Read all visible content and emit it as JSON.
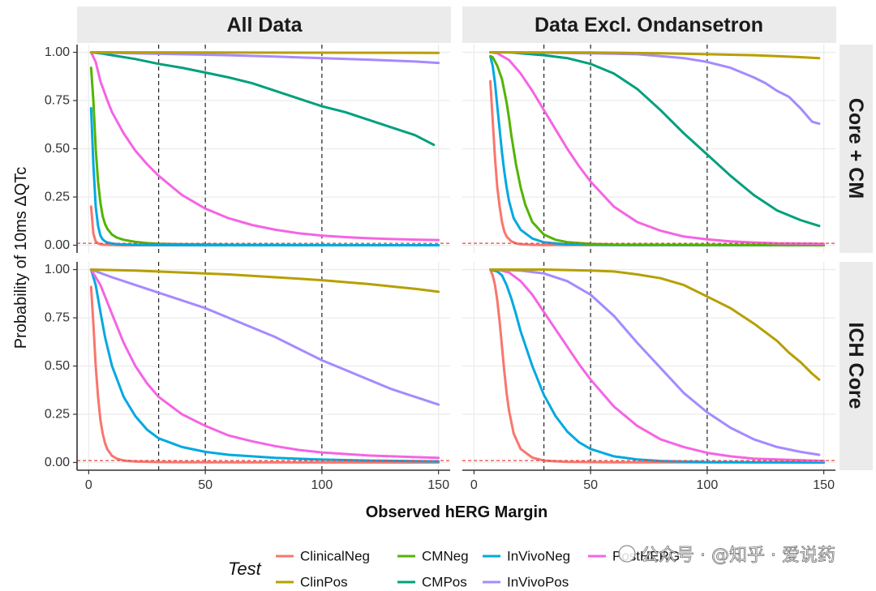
{
  "chart_data": {
    "type": "line",
    "xlabel": "Observed hERG Margin",
    "ylabel": "Probability of 10ms ΔQTc",
    "xlim": [
      -5,
      155
    ],
    "ylim": [
      -0.04,
      1.04
    ],
    "x_ticks": [
      0,
      50,
      100,
      150
    ],
    "x_tick_labels": [
      "0",
      "50",
      "100",
      "150"
    ],
    "y_ticks": [
      0,
      0.25,
      0.5,
      0.75,
      1
    ],
    "y_tick_labels": [
      "0.00",
      "0.25",
      "0.50",
      "0.75",
      "1.00"
    ],
    "vlines": [
      30,
      50,
      100
    ],
    "hline": 0.01,
    "col_facets": [
      "All Data",
      "Data Excl. Ondansetron"
    ],
    "row_facets": [
      "Core + CM",
      "ICH Core"
    ],
    "legend": {
      "title": "Test",
      "items": [
        {
          "key": "ClinicalNeg",
          "label": "ClinicalNeg",
          "color": "#F8766D"
        },
        {
          "key": "ClinPos",
          "label": "ClinPos",
          "color": "#B79F00"
        },
        {
          "key": "CMNeg",
          "label": "CMNeg",
          "color": "#53B400"
        },
        {
          "key": "CMPos",
          "label": "CMPos",
          "color": "#00A07C"
        },
        {
          "key": "InVivoNeg",
          "label": "InVivoNeg",
          "color": "#00A9E0"
        },
        {
          "key": "InVivoPos",
          "label": "InVivoPos",
          "color": "#A58AFF"
        },
        {
          "key": "PostHERG",
          "label": "PostHERG",
          "color": "#F564E3"
        }
      ]
    },
    "panels": [
      {
        "row": "Core + CM",
        "col": "All Data",
        "series": [
          {
            "name": "ClinicalNeg",
            "x": [
              1,
              2,
              3,
              4,
              5,
              6,
              8,
              10,
              15,
              30,
              150
            ],
            "y": [
              0.2,
              0.06,
              0.02,
              0.01,
              0.005,
              0.003,
              0.002,
              0.001,
              0,
              0,
              0
            ]
          },
          {
            "name": "CMNeg",
            "x": [
              1,
              2,
              3,
              4,
              5,
              6,
              7,
              8,
              10,
              12,
              15,
              20,
              25,
              30,
              40,
              60,
              150
            ],
            "y": [
              0.92,
              0.75,
              0.5,
              0.33,
              0.22,
              0.15,
              0.11,
              0.085,
              0.055,
              0.04,
              0.028,
              0.017,
              0.011,
              0.008,
              0.005,
              0.002,
              0
            ]
          },
          {
            "name": "InVivoNeg",
            "x": [
              1,
              2,
              3,
              4,
              5,
              6,
              7,
              8,
              10,
              12,
              15,
              20,
              30,
              50,
              150
            ],
            "y": [
              0.71,
              0.42,
              0.2,
              0.1,
              0.05,
              0.03,
              0.02,
              0.014,
              0.009,
              0.006,
              0.004,
              0.002,
              0.001,
              0,
              0
            ]
          },
          {
            "name": "PostHERG",
            "x": [
              1,
              3,
              5,
              8,
              10,
              15,
              20,
              25,
              30,
              40,
              50,
              60,
              70,
              80,
              90,
              100,
              110,
              120,
              130,
              140,
              150
            ],
            "y": [
              1,
              0.95,
              0.85,
              0.75,
              0.69,
              0.58,
              0.49,
              0.42,
              0.36,
              0.26,
              0.19,
              0.14,
              0.105,
              0.08,
              0.062,
              0.05,
              0.042,
              0.036,
              0.032,
              0.029,
              0.027
            ]
          },
          {
            "name": "CMPos",
            "x": [
              1,
              5,
              10,
              20,
              30,
              40,
              50,
              60,
              70,
              80,
              90,
              100,
              110,
              120,
              130,
              140,
              148
            ],
            "y": [
              1,
              0.995,
              0.985,
              0.965,
              0.94,
              0.92,
              0.895,
              0.87,
              0.84,
              0.8,
              0.76,
              0.72,
              0.69,
              0.65,
              0.61,
              0.57,
              0.52
            ]
          },
          {
            "name": "InVivoPos",
            "x": [
              1,
              20,
              40,
              60,
              80,
              100,
              120,
              140,
              150
            ],
            "y": [
              1,
              0.995,
              0.99,
              0.985,
              0.978,
              0.97,
              0.962,
              0.952,
              0.945
            ]
          },
          {
            "name": "ClinPos",
            "x": [
              1,
              50,
              100,
              150
            ],
            "y": [
              1,
              0.999,
              0.998,
              0.997
            ]
          }
        ]
      },
      {
        "row": "Core + CM",
        "col": "Data Excl. Ondansetron",
        "series": [
          {
            "name": "ClinicalNeg",
            "x": [
              7,
              8,
              9,
              10,
              11,
              12,
              13,
              14,
              16,
              18,
              20,
              25,
              30,
              150
            ],
            "y": [
              0.85,
              0.65,
              0.45,
              0.3,
              0.2,
              0.12,
              0.07,
              0.045,
              0.02,
              0.01,
              0.005,
              0.002,
              0.001,
              0
            ]
          },
          {
            "name": "InVivoNeg",
            "x": [
              7,
              8,
              9,
              10,
              11,
              12,
              13,
              14,
              15,
              17,
              20,
              25,
              30,
              40,
              60,
              150
            ],
            "y": [
              0.98,
              0.93,
              0.84,
              0.72,
              0.6,
              0.48,
              0.38,
              0.3,
              0.23,
              0.14,
              0.08,
              0.035,
              0.015,
              0.004,
              0.001,
              0
            ]
          },
          {
            "name": "CMNeg",
            "x": [
              7,
              8,
              10,
              12,
              14,
              15,
              16,
              18,
              20,
              22,
              25,
              30,
              35,
              40,
              50,
              60,
              150
            ],
            "y": [
              0.98,
              0.975,
              0.93,
              0.86,
              0.74,
              0.66,
              0.57,
              0.42,
              0.3,
              0.21,
              0.12,
              0.055,
              0.028,
              0.016,
              0.007,
              0.003,
              0
            ]
          },
          {
            "name": "PostHERG",
            "x": [
              7,
              10,
              15,
              20,
              25,
              30,
              35,
              40,
              45,
              50,
              60,
              70,
              80,
              90,
              100,
              110,
              120,
              130,
              150
            ],
            "y": [
              1,
              0.995,
              0.96,
              0.89,
              0.8,
              0.7,
              0.6,
              0.5,
              0.41,
              0.33,
              0.2,
              0.12,
              0.075,
              0.045,
              0.03,
              0.02,
              0.014,
              0.01,
              0.007
            ]
          },
          {
            "name": "CMPos",
            "x": [
              7,
              15,
              20,
              30,
              40,
              50,
              60,
              70,
              80,
              90,
              100,
              110,
              120,
              130,
              140,
              148
            ],
            "y": [
              1,
              1,
              0.995,
              0.985,
              0.97,
              0.94,
              0.89,
              0.81,
              0.7,
              0.58,
              0.47,
              0.36,
              0.26,
              0.18,
              0.13,
              0.1
            ]
          },
          {
            "name": "InVivoPos",
            "x": [
              7,
              30,
              50,
              70,
              80,
              90,
              100,
              110,
              120,
              125,
              130,
              135,
              140,
              145,
              148
            ],
            "y": [
              1,
              0.998,
              0.995,
              0.99,
              0.98,
              0.97,
              0.95,
              0.92,
              0.87,
              0.84,
              0.8,
              0.77,
              0.71,
              0.64,
              0.63
            ]
          },
          {
            "name": "ClinPos",
            "x": [
              7,
              50,
              80,
              100,
              120,
              130,
              140,
              148
            ],
            "y": [
              1,
              0.999,
              0.995,
              0.99,
              0.985,
              0.98,
              0.975,
              0.97
            ]
          }
        ]
      },
      {
        "row": "ICH Core",
        "col": "All Data",
        "series": [
          {
            "name": "ClinicalNeg",
            "x": [
              1,
              2,
              3,
              4,
              5,
              6,
              7,
              8,
              10,
              12,
              15,
              20,
              30,
              50,
              150
            ],
            "y": [
              0.91,
              0.72,
              0.5,
              0.34,
              0.22,
              0.15,
              0.1,
              0.068,
              0.035,
              0.02,
              0.01,
              0.005,
              0.002,
              0.001,
              0
            ]
          },
          {
            "name": "InVivoNeg",
            "x": [
              1,
              3,
              5,
              7,
              10,
              15,
              20,
              25,
              30,
              40,
              50,
              60,
              80,
              100,
              120,
              150
            ],
            "y": [
              1,
              0.92,
              0.78,
              0.65,
              0.5,
              0.34,
              0.24,
              0.17,
              0.125,
              0.08,
              0.055,
              0.04,
              0.024,
              0.015,
              0.01,
              0.006
            ]
          },
          {
            "name": "PostHERG",
            "x": [
              1,
              5,
              10,
              15,
              20,
              25,
              30,
              40,
              50,
              60,
              70,
              80,
              90,
              100,
              120,
              150
            ],
            "y": [
              1,
              0.92,
              0.77,
              0.62,
              0.5,
              0.41,
              0.34,
              0.25,
              0.19,
              0.14,
              0.11,
              0.085,
              0.065,
              0.052,
              0.036,
              0.024
            ]
          },
          {
            "name": "InVivoPos",
            "x": [
              1,
              10,
              20,
              30,
              40,
              50,
              60,
              70,
              80,
              90,
              100,
              110,
              120,
              130,
              140,
              150
            ],
            "y": [
              1,
              0.96,
              0.92,
              0.88,
              0.84,
              0.8,
              0.75,
              0.7,
              0.65,
              0.59,
              0.53,
              0.48,
              0.43,
              0.38,
              0.34,
              0.3
            ]
          },
          {
            "name": "ClinPos",
            "x": [
              1,
              20,
              40,
              60,
              80,
              100,
              120,
              140,
              150
            ],
            "y": [
              1,
              0.995,
              0.985,
              0.975,
              0.96,
              0.945,
              0.925,
              0.9,
              0.885
            ]
          }
        ]
      },
      {
        "row": "ICH Core",
        "col": "Data Excl. Ondansetron",
        "series": [
          {
            "name": "ClinicalNeg",
            "x": [
              7,
              8,
              9,
              10,
              11,
              12,
              13,
              14,
              15,
              17,
              20,
              25,
              30,
              40,
              60,
              150
            ],
            "y": [
              1,
              0.97,
              0.92,
              0.84,
              0.73,
              0.6,
              0.47,
              0.36,
              0.27,
              0.15,
              0.07,
              0.025,
              0.01,
              0.003,
              0.001,
              0
            ]
          },
          {
            "name": "InVivoNeg",
            "x": [
              7,
              10,
              12,
              14,
              16,
              18,
              20,
              25,
              30,
              35,
              40,
              45,
              50,
              60,
              70,
              80,
              100,
              150
            ],
            "y": [
              1,
              0.99,
              0.97,
              0.92,
              0.85,
              0.77,
              0.68,
              0.5,
              0.35,
              0.24,
              0.16,
              0.105,
              0.07,
              0.032,
              0.016,
              0.008,
              0.002,
              0
            ]
          },
          {
            "name": "PostHERG",
            "x": [
              7,
              10,
              15,
              20,
              25,
              30,
              35,
              40,
              45,
              50,
              60,
              70,
              80,
              90,
              100,
              110,
              120,
              150
            ],
            "y": [
              1,
              1,
              0.985,
              0.94,
              0.87,
              0.78,
              0.69,
              0.6,
              0.51,
              0.43,
              0.29,
              0.19,
              0.12,
              0.08,
              0.05,
              0.032,
              0.02,
              0.008
            ]
          },
          {
            "name": "InVivoPos",
            "x": [
              7,
              20,
              30,
              40,
              50,
              60,
              70,
              80,
              90,
              100,
              110,
              120,
              130,
              140,
              148
            ],
            "y": [
              1,
              0.995,
              0.98,
              0.94,
              0.87,
              0.76,
              0.62,
              0.49,
              0.36,
              0.26,
              0.18,
              0.12,
              0.08,
              0.055,
              0.04
            ]
          },
          {
            "name": "ClinPos",
            "x": [
              7,
              30,
              50,
              60,
              70,
              80,
              90,
              100,
              110,
              120,
              130,
              135,
              140,
              145,
              148
            ],
            "y": [
              1,
              1,
              0.995,
              0.99,
              0.975,
              0.955,
              0.92,
              0.86,
              0.8,
              0.72,
              0.63,
              0.57,
              0.52,
              0.46,
              0.43
            ]
          }
        ]
      }
    ]
  },
  "watermark": {
    "text": "公众号 · @知乎 · 爱说药"
  }
}
